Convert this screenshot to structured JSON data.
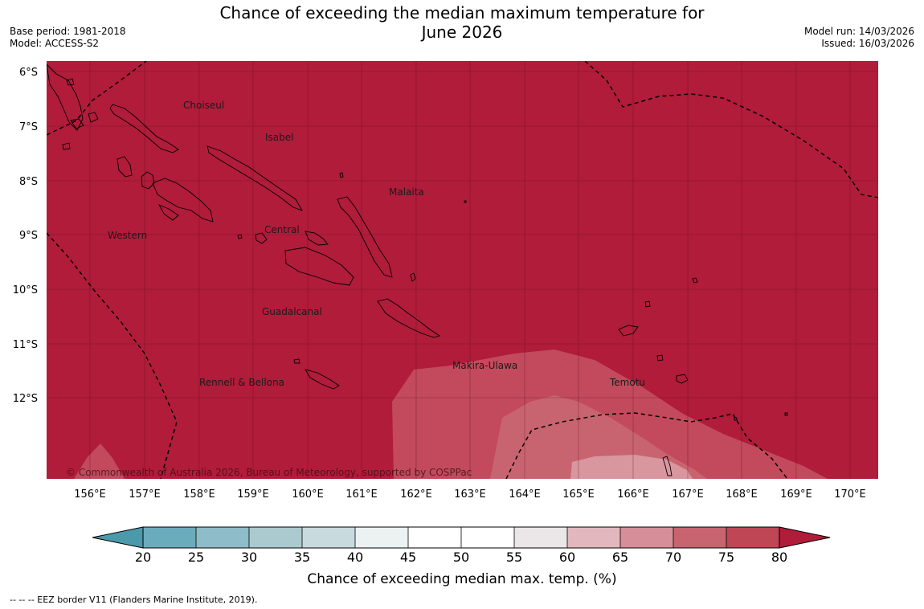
{
  "title": {
    "line1": "Chance of exceeding the median maximum temperature for",
    "line2": "June 2026"
  },
  "meta_left": {
    "base_period": "Base period: 1981-2018",
    "model": "Model: ACCESS-S2"
  },
  "meta_right": {
    "model_run": "Model run: 14/03/2026",
    "issued": "Issued: 16/03/2026"
  },
  "map": {
    "lat_labels": [
      "6°S",
      "7°S",
      "8°S",
      "9°S",
      "10°S",
      "11°S",
      "12°S"
    ],
    "lon_labels": [
      "156°E",
      "157°E",
      "158°E",
      "159°E",
      "160°E",
      "161°E",
      "162°E",
      "163°E",
      "164°E",
      "165°E",
      "166°E",
      "167°E",
      "168°E",
      "169°E",
      "170°E"
    ],
    "province_labels": [
      "Choiseul",
      "Isabel",
      "Malaita",
      "Western",
      "Central",
      "Guadalcanal",
      "Makira-Ulawa",
      "Rennell & Bellona",
      "Temotu"
    ],
    "copyright": "© Commonwealth of Australia 2026, Bureau of Meteorology, supported by COSPPac",
    "background_color": "#b01c3a",
    "colors": {
      "band_70_75": "#c24a5c",
      "band_65_70": "#c8646f",
      "band_60_65": "#d8969f"
    }
  },
  "colorbar": {
    "ticks": [
      "20",
      "25",
      "30",
      "35",
      "40",
      "45",
      "50",
      "55",
      "60",
      "65",
      "70",
      "75",
      "80"
    ],
    "colors": [
      "#4a9aab",
      "#6aacbc",
      "#8ebcc8",
      "#aacacf",
      "#c9dade",
      "#ecf1f2",
      "#ffffff",
      "#ffffff",
      "#ebe6e7",
      "#e2b7bd",
      "#d68f99",
      "#c8646f",
      "#be4655",
      "#b01c3a"
    ],
    "label": "Chance of exceeding median max. temp. (%)"
  },
  "footnote": "--  --  -- EEZ border V11 (Flanders Marine Institute, 2019)."
}
